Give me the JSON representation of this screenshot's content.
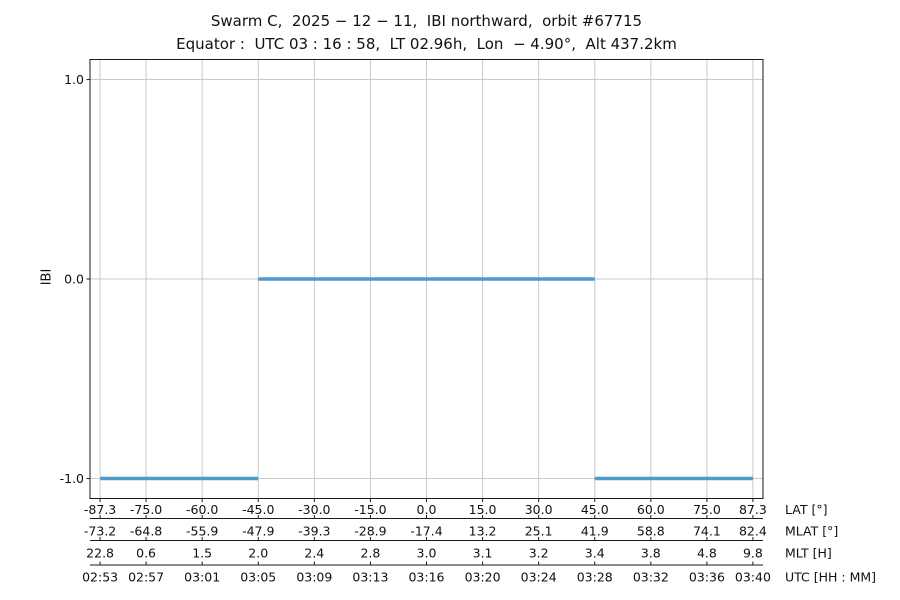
{
  "colors": {
    "background": "#ffffff",
    "line": "#4f9aca",
    "grid": "#c9c9c9",
    "spine": "#1a1a1a",
    "text": "#111111"
  },
  "chart_data": {
    "type": "line",
    "title": "Swarm C,  2025 − 12 − 11,  IBI northward,  orbit #67715",
    "subtitle": "Equator :  UTC 03 : 16 : 58,  LT 02.96h,  Lon  − 4.90°,  Alt 437.2km",
    "ylabel": "IBI",
    "xlim": [
      -90,
      90
    ],
    "ylim": [
      -1.1,
      1.1
    ],
    "grid": true,
    "legend": "none",
    "line_color": "#4f9aca",
    "yticks": [
      1.0,
      0.0,
      -1.0
    ],
    "ytick_labels": [
      "1.0",
      "0.0",
      "-1.0"
    ],
    "tick_lats": [
      -87.3,
      -75.0,
      -60.0,
      -45.0,
      -30.0,
      -15.0,
      0.0,
      15.0,
      30.0,
      45.0,
      60.0,
      75.0,
      87.3
    ],
    "segments": [
      {
        "ibi": -1.0,
        "lat_start": -87.3,
        "lat_end": -45.0
      },
      {
        "ibi": 0.0,
        "lat_start": -45.0,
        "lat_end": 45.0
      },
      {
        "ibi": -1.0,
        "lat_start": 45.0,
        "lat_end": 87.3
      }
    ],
    "x_axes_rows": [
      {
        "label": "LAT [°]",
        "values": [
          "-87.3",
          "-75.0",
          "-60.0",
          "-45.0",
          "-30.0",
          "-15.0",
          "0.0",
          "15.0",
          "30.0",
          "45.0",
          "60.0",
          "75.0",
          "87.3"
        ]
      },
      {
        "label": "MLAT [°]",
        "values": [
          "-73.2",
          "-64.8",
          "-55.9",
          "-47.9",
          "-39.3",
          "-28.9",
          "-17.4",
          "13.2",
          "25.1",
          "41.9",
          "58.8",
          "74.1",
          "82.4"
        ]
      },
      {
        "label": "MLT [H]",
        "values": [
          "22.8",
          "0.6",
          "1.5",
          "2.0",
          "2.4",
          "2.8",
          "3.0",
          "3.1",
          "3.2",
          "3.4",
          "3.8",
          "4.8",
          "9.8"
        ]
      },
      {
        "label": "UTC [HH : MM]",
        "values": [
          "02:53",
          "02:57",
          "03:01",
          "03:05",
          "03:09",
          "03:13",
          "03:16",
          "03:20",
          "03:24",
          "03:28",
          "03:32",
          "03:36",
          "03:40"
        ]
      }
    ]
  }
}
